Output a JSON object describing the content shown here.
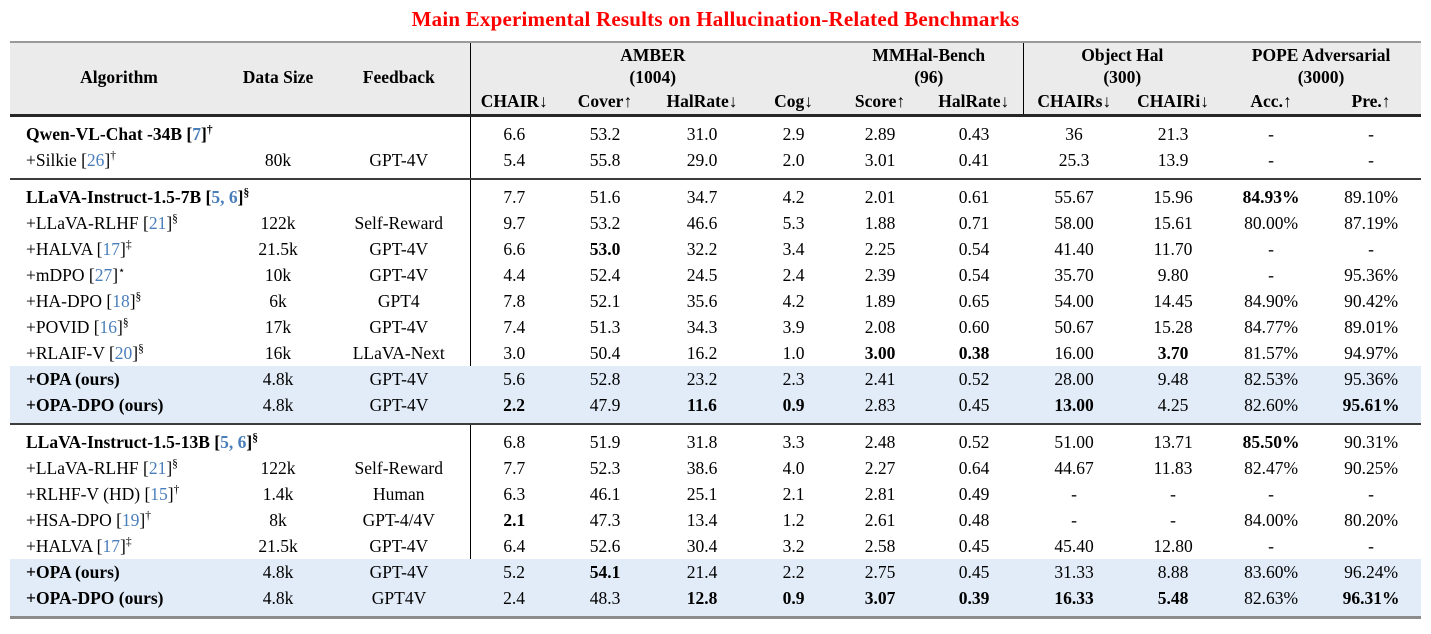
{
  "title": "Main Experimental Results on Hallucination-Related Benchmarks",
  "colors": {
    "title_red": "#ff0000",
    "header_bg": "#ebebeb",
    "highlight_bg": "#e2ecf8",
    "citation_blue": "#4a7ebb"
  },
  "table": {
    "base_headers": [
      "Algorithm",
      "Data Size",
      "Feedback"
    ],
    "groups": [
      {
        "name": "AMBER",
        "count": "(1004)",
        "cols": [
          "CHAIR↓",
          "Cover↑",
          "HalRate↓",
          "Cog↓"
        ]
      },
      {
        "name": "MMHal-Bench",
        "count": "(96)",
        "cols": [
          "Score↑",
          "HalRate↓"
        ]
      },
      {
        "name": "Object Hal",
        "count": "(300)",
        "cols": [
          "CHAIRs↓",
          "CHAIRi↓"
        ]
      },
      {
        "name": "POPE Adversarial",
        "count": "(3000)",
        "cols": [
          "Acc.↑",
          "Pre.↑"
        ]
      }
    ],
    "sections": [
      {
        "rows": [
          {
            "algorithm": {
              "name": "Qwen-VL-Chat -34B",
              "cite": "7",
              "sup": "†",
              "bold": true
            },
            "data_size": "",
            "feedback": "",
            "values": [
              "6.6",
              "53.2",
              "31.0",
              "2.9",
              "2.89",
              "0.43",
              "36",
              "21.3",
              "-",
              "-"
            ],
            "bold_values": [],
            "highlight": false
          },
          {
            "algorithm": {
              "name": "+Silkie",
              "cite": "26",
              "sup": "†",
              "bold": false
            },
            "data_size": "80k",
            "feedback": "GPT-4V",
            "values": [
              "5.4",
              "55.8",
              "29.0",
              "2.0",
              "3.01",
              "0.41",
              "25.3",
              "13.9",
              "-",
              "-"
            ],
            "bold_values": [],
            "highlight": false
          }
        ]
      },
      {
        "rows": [
          {
            "algorithm": {
              "name": "LLaVA-Instruct-1.5-7B",
              "cite": "5, 6",
              "sup": "§",
              "bold": true
            },
            "data_size": "",
            "feedback": "",
            "values": [
              "7.7",
              "51.6",
              "34.7",
              "4.2",
              "2.01",
              "0.61",
              "55.67",
              "15.96",
              "84.93%",
              "89.10%"
            ],
            "bold_values": [
              8
            ],
            "highlight": false
          },
          {
            "algorithm": {
              "name": "+LLaVA-RLHF",
              "cite": "21",
              "sup": "§",
              "bold": false
            },
            "data_size": "122k",
            "feedback": "Self-Reward",
            "values": [
              "9.7",
              "53.2",
              "46.6",
              "5.3",
              "1.88",
              "0.71",
              "58.00",
              "15.61",
              "80.00%",
              "87.19%"
            ],
            "bold_values": [],
            "highlight": false
          },
          {
            "algorithm": {
              "name": "+HALVA",
              "cite": "17",
              "sup": "‡",
              "bold": false
            },
            "data_size": "21.5k",
            "feedback": "GPT-4V",
            "values": [
              "6.6",
              "53.0",
              "32.2",
              "3.4",
              "2.25",
              "0.54",
              "41.40",
              "11.70",
              "-",
              "-"
            ],
            "bold_values": [
              1
            ],
            "highlight": false
          },
          {
            "algorithm": {
              "name": "+mDPO",
              "cite": "27",
              "sup": "⋆",
              "bold": false
            },
            "data_size": "10k",
            "feedback": "GPT-4V",
            "values": [
              "4.4",
              "52.4",
              "24.5",
              "2.4",
              "2.39",
              "0.54",
              "35.70",
              "9.80",
              "-",
              "95.36%"
            ],
            "bold_values": [],
            "highlight": false
          },
          {
            "algorithm": {
              "name": "+HA-DPO",
              "cite": "18",
              "sup": "§",
              "bold": false
            },
            "data_size": "6k",
            "feedback": "GPT4",
            "values": [
              "7.8",
              "52.1",
              "35.6",
              "4.2",
              "1.89",
              "0.65",
              "54.00",
              "14.45",
              "84.90%",
              "90.42%"
            ],
            "bold_values": [],
            "highlight": false
          },
          {
            "algorithm": {
              "name": "+POVID",
              "cite": "16",
              "sup": "§",
              "bold": false
            },
            "data_size": "17k",
            "feedback": "GPT-4V",
            "values": [
              "7.4",
              "51.3",
              "34.3",
              "3.9",
              "2.08",
              "0.60",
              "50.67",
              "15.28",
              "84.77%",
              "89.01%"
            ],
            "bold_values": [],
            "highlight": false
          },
          {
            "algorithm": {
              "name": "+RLAIF-V",
              "cite": "20",
              "sup": "§",
              "bold": false
            },
            "data_size": "16k",
            "feedback": "LLaVA-Next",
            "values": [
              "3.0",
              "50.4",
              "16.2",
              "1.0",
              "3.00",
              "0.38",
              "16.00",
              "3.70",
              "81.57%",
              "94.97%"
            ],
            "bold_values": [
              4,
              5,
              7
            ],
            "highlight": false
          },
          {
            "algorithm": {
              "name": "+OPA (ours)",
              "cite": null,
              "sup": null,
              "bold": true
            },
            "data_size": "4.8k",
            "feedback": "GPT-4V",
            "values": [
              "5.6",
              "52.8",
              "23.2",
              "2.3",
              "2.41",
              "0.52",
              "28.00",
              "9.48",
              "82.53%",
              "95.36%"
            ],
            "bold_values": [],
            "highlight": true
          },
          {
            "algorithm": {
              "name": "+OPA-DPO (ours)",
              "cite": null,
              "sup": null,
              "bold": true
            },
            "data_size": "4.8k",
            "feedback": "GPT-4V",
            "values": [
              "2.2",
              "47.9",
              "11.6",
              "0.9",
              "2.83",
              "0.45",
              "13.00",
              "4.25",
              "82.60%",
              "95.61%"
            ],
            "bold_values": [
              0,
              2,
              3,
              6,
              9
            ],
            "highlight": true
          }
        ]
      },
      {
        "rows": [
          {
            "algorithm": {
              "name": "LLaVA-Instruct-1.5-13B",
              "cite": "5, 6",
              "sup": "§",
              "bold": true
            },
            "data_size": "",
            "feedback": "",
            "values": [
              "6.8",
              "51.9",
              "31.8",
              "3.3",
              "2.48",
              "0.52",
              "51.00",
              "13.71",
              "85.50%",
              "90.31%"
            ],
            "bold_values": [
              8
            ],
            "highlight": false
          },
          {
            "algorithm": {
              "name": "+LLaVA-RLHF",
              "cite": "21",
              "sup": "§",
              "bold": false
            },
            "data_size": "122k",
            "feedback": "Self-Reward",
            "values": [
              "7.7",
              "52.3",
              "38.6",
              "4.0",
              "2.27",
              "0.64",
              "44.67",
              "11.83",
              "82.47%",
              "90.25%"
            ],
            "bold_values": [],
            "highlight": false
          },
          {
            "algorithm": {
              "name": "+RLHF-V (HD)",
              "cite": "15",
              "sup": "†",
              "bold": false
            },
            "data_size": "1.4k",
            "feedback": "Human",
            "values": [
              "6.3",
              "46.1",
              "25.1",
              "2.1",
              "2.81",
              "0.49",
              "-",
              "-",
              "-",
              "-"
            ],
            "bold_values": [],
            "highlight": false
          },
          {
            "algorithm": {
              "name": "+HSA-DPO",
              "cite": "19",
              "sup": "†",
              "bold": false
            },
            "data_size": "8k",
            "feedback": "GPT-4/4V",
            "values": [
              "2.1",
              "47.3",
              "13.4",
              "1.2",
              "2.61",
              "0.48",
              "-",
              "-",
              "84.00%",
              "80.20%"
            ],
            "bold_values": [
              0
            ],
            "highlight": false
          },
          {
            "algorithm": {
              "name": "+HALVA",
              "cite": "17",
              "sup": "‡",
              "bold": false
            },
            "data_size": "21.5k",
            "feedback": "GPT-4V",
            "values": [
              "6.4",
              "52.6",
              "30.4",
              "3.2",
              "2.58",
              "0.45",
              "45.40",
              "12.80",
              "-",
              "-"
            ],
            "bold_values": [],
            "highlight": false
          },
          {
            "algorithm": {
              "name": "+OPA (ours)",
              "cite": null,
              "sup": null,
              "bold": true
            },
            "data_size": "4.8k",
            "feedback": "GPT-4V",
            "values": [
              "5.2",
              "54.1",
              "21.4",
              "2.2",
              "2.75",
              "0.45",
              "31.33",
              "8.88",
              "83.60%",
              "96.24%"
            ],
            "bold_values": [
              1
            ],
            "highlight": true
          },
          {
            "algorithm": {
              "name": "+OPA-DPO (ours)",
              "cite": null,
              "sup": null,
              "bold": true
            },
            "data_size": "4.8k",
            "feedback": "GPT4V",
            "values": [
              "2.4",
              "48.3",
              "12.8",
              "0.9",
              "3.07",
              "0.39",
              "16.33",
              "5.48",
              "82.63%",
              "96.31%"
            ],
            "bold_values": [
              2,
              3,
              4,
              5,
              6,
              7,
              9
            ],
            "highlight": true
          }
        ]
      }
    ]
  }
}
